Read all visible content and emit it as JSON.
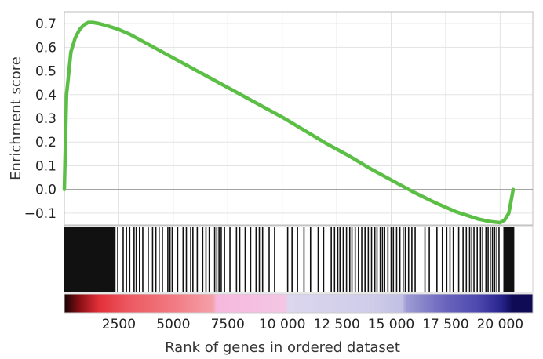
{
  "chart_data": {
    "type": "line",
    "title": "",
    "xlabel": "Rank of genes in ordered dataset",
    "ylabel": "Enrichment score",
    "xlim": [
      0,
      21500
    ],
    "ylim": [
      -0.15,
      0.75
    ],
    "x_ticks": [
      2500,
      5000,
      7500,
      10000,
      12500,
      15000,
      17500,
      20000
    ],
    "x_tick_labels": [
      "2500",
      "5000",
      "7500",
      "10 000",
      "12 500",
      "15 000",
      "17 500",
      "20 000"
    ],
    "y_ticks": [
      0.7,
      0.6,
      0.5,
      0.4,
      0.3,
      0.2,
      0.1,
      0.0,
      -0.1
    ],
    "y_tick_labels": [
      "0.7",
      "0.6",
      "0.5",
      "0.4",
      "0.3",
      "0.2",
      "0.1",
      "0.0",
      "−0.1"
    ],
    "grid": true,
    "legend": "none",
    "series": [
      {
        "color": "#5cbf45",
        "x": [
          0,
          100,
          300,
          500,
          700,
          900,
          1100,
          1300,
          1600,
          2000,
          2500,
          3000,
          4000,
          5000,
          6000,
          7000,
          8000,
          9000,
          10000,
          11000,
          12000,
          13000,
          14000,
          15000,
          16000,
          17000,
          18000,
          19000,
          19500,
          20000,
          20200,
          20400,
          20600
        ],
        "y": [
          0.0,
          0.4,
          0.58,
          0.64,
          0.675,
          0.695,
          0.705,
          0.705,
          0.7,
          0.69,
          0.675,
          0.655,
          0.605,
          0.555,
          0.505,
          0.455,
          0.405,
          0.355,
          0.305,
          0.25,
          0.195,
          0.145,
          0.09,
          0.04,
          -0.01,
          -0.055,
          -0.095,
          -0.125,
          -0.135,
          -0.14,
          -0.13,
          -0.1,
          0.0
        ]
      }
    ],
    "hits": {
      "color": "#111111",
      "dense_blocks": [
        [
          0,
          2350
        ],
        [
          20150,
          20650
        ]
      ],
      "positions": [
        2450,
        2700,
        2850,
        3000,
        3200,
        3300,
        3450,
        3600,
        3850,
        4050,
        4200,
        4350,
        4500,
        4750,
        4850,
        4950,
        5200,
        5450,
        5600,
        5800,
        5900,
        6100,
        6350,
        6500,
        6650,
        6900,
        7000,
        7100,
        7200,
        7350,
        7600,
        7900,
        8050,
        8300,
        8550,
        8800,
        8950,
        9100,
        9400,
        9650,
        10250,
        10450,
        10700,
        11000,
        11300,
        11650,
        11900,
        12250,
        12400,
        12550,
        12650,
        12800,
        12950,
        13100,
        13200,
        13350,
        13500,
        13650,
        13800,
        13950,
        14100,
        14250,
        14350,
        14500,
        14600,
        14700,
        14850,
        15000,
        15100,
        15250,
        15400,
        15550,
        15650,
        15800,
        15950,
        16100,
        16550,
        16750,
        17100,
        17350,
        17550,
        17700,
        17850,
        18100,
        18300,
        18450,
        18600,
        18700,
        18800,
        18950,
        19100,
        19200,
        19350,
        19450,
        19550,
        19650,
        19750,
        19850,
        19950
      ]
    },
    "ranked_list_colors": {
      "stops": [
        {
          "x": 0,
          "color": "#170303"
        },
        {
          "x": 700,
          "color": "#8a0f15"
        },
        {
          "x": 1600,
          "color": "#e3303a"
        },
        {
          "x": 3000,
          "color": "#ec5a62"
        },
        {
          "x": 5000,
          "color": "#f27a82"
        },
        {
          "x": 6800,
          "color": "#f4a0a8"
        },
        {
          "x": 7000,
          "color": "#f7b8de"
        },
        {
          "x": 10100,
          "color": "#f3c6e4"
        },
        {
          "x": 10300,
          "color": "#dcd6ee"
        },
        {
          "x": 14000,
          "color": "#cfcde9"
        },
        {
          "x": 15500,
          "color": "#c2c0e3"
        },
        {
          "x": 15700,
          "color": "#9f9bd4"
        },
        {
          "x": 17500,
          "color": "#6965bd"
        },
        {
          "x": 19000,
          "color": "#4d48ad"
        },
        {
          "x": 20000,
          "color": "#2a2690"
        },
        {
          "x": 20600,
          "color": "#0f0b55"
        }
      ]
    }
  }
}
